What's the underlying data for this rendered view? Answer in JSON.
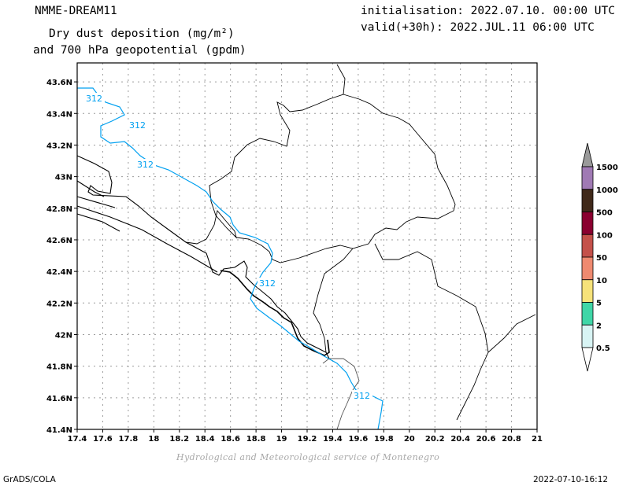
{
  "header": {
    "model": "NMME-DREAM11",
    "title_line1": "Dry dust deposition (mg/m²)",
    "title_line2": "and 700 hPa geopotential (gpdm)",
    "init": "initialisation: 2022.07.10. 00:00 UTC",
    "valid": "valid(+30h): 2022.JUL.11 06:00 UTC"
  },
  "map": {
    "lon_labels": [
      "17.4",
      "17.6",
      "17.8",
      "18",
      "18.2",
      "18.4",
      "18.6",
      "18.8",
      "19",
      "19.2",
      "19.4",
      "19.6",
      "19.8",
      "20",
      "20.2",
      "20.4",
      "20.6",
      "20.8",
      "21"
    ],
    "lat_labels": [
      "41.4N",
      "41.6N",
      "41.8N",
      "42N",
      "42.2N",
      "42.4N",
      "42.6N",
      "42.8N",
      "43N",
      "43.2N",
      "43.4N",
      "43.6N"
    ],
    "contour_labels": [
      "312",
      "312",
      "312",
      "312",
      "312"
    ],
    "contour_color": "#00a0f0"
  },
  "legend": {
    "labels": [
      "1500",
      "1000",
      "500",
      "100",
      "50",
      "10",
      "5",
      "2",
      "0.5"
    ],
    "colors": [
      "#a07ab4",
      "#40291a",
      "#8a0030",
      "#c4514a",
      "#ef8a70",
      "#f6e27a",
      "#3fd6a7",
      "#d8f4f4"
    ],
    "arrow_top_color": "#9a9a9a"
  },
  "footer": {
    "credit": "Hydrological and Meteorological service of Montenegro",
    "software": "GrADS/COLA",
    "timestamp": "2022-07-10-16:12"
  }
}
